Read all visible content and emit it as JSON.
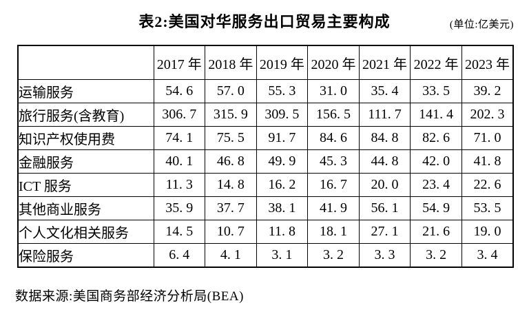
{
  "title": "表2:美国对华服务出口贸易主要构成",
  "unit": "(单位:亿美元)",
  "source": "数据来源:美国商务部经济分析局(BEA)",
  "chart_data": {
    "type": "table",
    "corner": "",
    "columns": [
      "2017 年",
      "2018 年",
      "2019 年",
      "2020 年",
      "2021 年",
      "2022 年",
      "2023 年"
    ],
    "rows": [
      {
        "label": "运输服务",
        "values": [
          "54.6",
          "57.0",
          "55.3",
          "31.0",
          "35.4",
          "33.5",
          "39.2"
        ]
      },
      {
        "label": "旅行服务(含教育)",
        "values": [
          "306.7",
          "315.9",
          "309.5",
          "156.5",
          "111.7",
          "141.4",
          "202.3"
        ]
      },
      {
        "label": "知识产权使用费",
        "values": [
          "74.1",
          "75.5",
          "91.7",
          "84.6",
          "84.8",
          "82.6",
          "71.0"
        ]
      },
      {
        "label": "金融服务",
        "values": [
          "40.1",
          "46.8",
          "49.9",
          "45.3",
          "44.8",
          "42.0",
          "41.8"
        ]
      },
      {
        "label": "ICT 服务",
        "values": [
          "11.3",
          "14.8",
          "16.2",
          "16.7",
          "20.0",
          "23.4",
          "22.6"
        ]
      },
      {
        "label": "其他商业服务",
        "values": [
          "35.9",
          "37.7",
          "38.1",
          "41.9",
          "56.1",
          "54.9",
          "53.5"
        ]
      },
      {
        "label": "个人文化相关服务",
        "values": [
          "14.5",
          "10.7",
          "11.8",
          "18.1",
          "27.1",
          "21.6",
          "19.0"
        ]
      },
      {
        "label": "保险服务",
        "values": [
          "6.4",
          "4.1",
          "3.1",
          "3.2",
          "3.3",
          "3.2",
          "3.4"
        ]
      }
    ]
  }
}
